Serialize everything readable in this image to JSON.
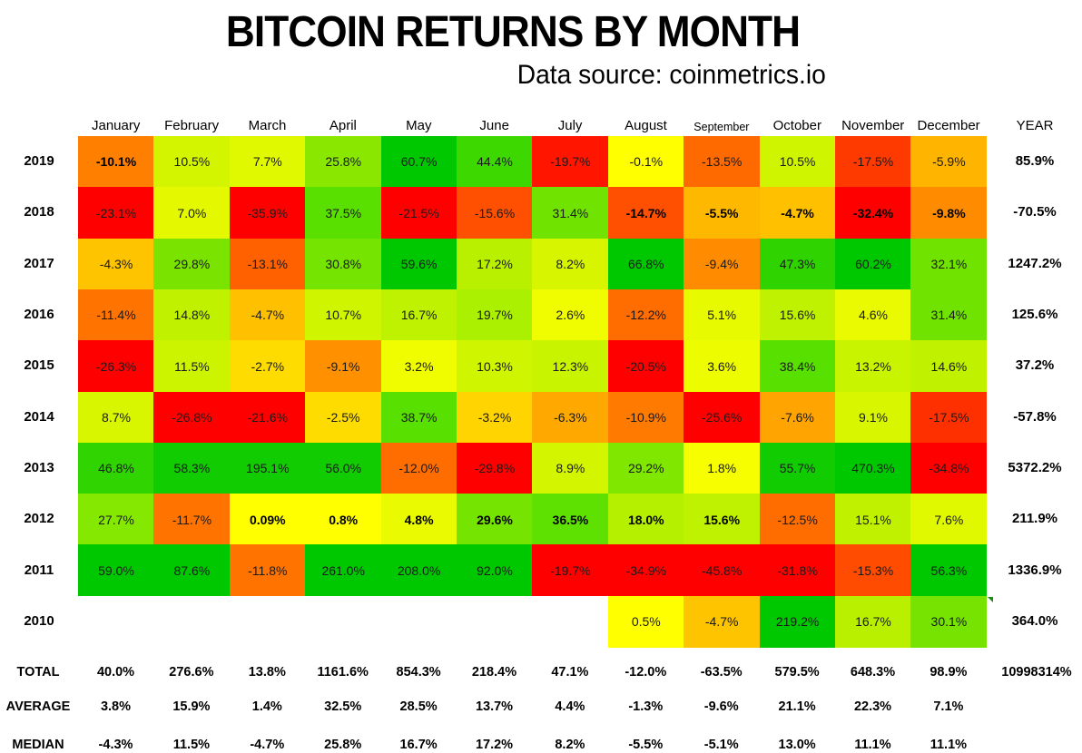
{
  "title": "BITCOIN RETURNS BY MONTH",
  "subtitle": "Data source: coinmetrics.io",
  "year_header": "YEAR",
  "months": [
    "January",
    "February",
    "March",
    "April",
    "May",
    "June",
    "July",
    "August",
    "September",
    "October",
    "November",
    "December"
  ],
  "rows": [
    {
      "year": "2019",
      "values": [
        "-10.1%",
        "10.5%",
        "7.7%",
        "25.8%",
        "60.7%",
        "44.4%",
        "-19.7%",
        "-0.1%",
        "-13.5%",
        "10.5%",
        "-17.5%",
        "-5.9%"
      ],
      "colors": [
        "#ff7f00",
        "#d4f500",
        "#e0f800",
        "#8ae800",
        "#00c800",
        "#3dd800",
        "#ff1500",
        "#ffff00",
        "#ff6a00",
        "#d0f500",
        "#ff3a00",
        "#ffb400"
      ],
      "bold": [
        true,
        false,
        false,
        false,
        false,
        false,
        false,
        false,
        false,
        false,
        false,
        false
      ],
      "year_total": "85.9%"
    },
    {
      "year": "2018",
      "values": [
        "-23.1%",
        "7.0%",
        "-35.9%",
        "37.5%",
        "-21.5%",
        "-15.6%",
        "31.4%",
        "-14.7%",
        "-5.5%",
        "-4.7%",
        "-32.4%",
        "-9.8%"
      ],
      "colors": [
        "#ff0000",
        "#e4f800",
        "#ff0000",
        "#5ae000",
        "#ff0000",
        "#ff4f00",
        "#70e400",
        "#ff4f00",
        "#ffb800",
        "#ffc000",
        "#ff0000",
        "#ff8c00"
      ],
      "bold": [
        false,
        false,
        false,
        false,
        false,
        false,
        false,
        true,
        true,
        true,
        true,
        true
      ],
      "year_total": "-70.5%"
    },
    {
      "year": "2017",
      "values": [
        "-4.3%",
        "29.8%",
        "-13.1%",
        "30.8%",
        "59.6%",
        "17.2%",
        "8.2%",
        "66.8%",
        "-9.4%",
        "47.3%",
        "60.2%",
        "32.1%"
      ],
      "colors": [
        "#ffc400",
        "#7ae400",
        "#ff6000",
        "#74e400",
        "#00c800",
        "#b8f000",
        "#d8f500",
        "#00c800",
        "#ff8c00",
        "#2fd400",
        "#00c800",
        "#70e400"
      ],
      "bold": [
        false,
        false,
        false,
        false,
        false,
        false,
        false,
        false,
        false,
        false,
        false,
        false
      ],
      "year_total": "1247.2%"
    },
    {
      "year": "2016",
      "values": [
        "-11.4%",
        "14.8%",
        "-4.7%",
        "10.7%",
        "16.7%",
        "19.7%",
        "2.6%",
        "-12.2%",
        "5.1%",
        "15.6%",
        "4.6%",
        "31.4%"
      ],
      "colors": [
        "#ff7300",
        "#c0f200",
        "#ffc000",
        "#d0f500",
        "#bef200",
        "#aaf000",
        "#f0fc00",
        "#ff6c00",
        "#e8fa00",
        "#bef200",
        "#eafa00",
        "#70e400"
      ],
      "bold": [
        false,
        false,
        false,
        false,
        false,
        false,
        false,
        false,
        false,
        false,
        false,
        false
      ],
      "year_total": "125.6%"
    },
    {
      "year": "2015",
      "values": [
        "-26.3%",
        "11.5%",
        "-2.7%",
        "-9.1%",
        "3.2%",
        "10.3%",
        "12.3%",
        "-20.5%",
        "3.6%",
        "38.4%",
        "13.2%",
        "14.6%"
      ],
      "colors": [
        "#ff0000",
        "#ccf400",
        "#ffdc00",
        "#ff9000",
        "#f0fc00",
        "#d0f500",
        "#c8f400",
        "#ff0000",
        "#eefc00",
        "#58e000",
        "#c8f400",
        "#c0f200"
      ],
      "bold": [
        false,
        false,
        false,
        false,
        false,
        false,
        false,
        false,
        false,
        false,
        false,
        false
      ],
      "year_total": "37.2%"
    },
    {
      "year": "2014",
      "values": [
        "8.7%",
        "-26.8%",
        "-21.6%",
        "-2.5%",
        "38.7%",
        "-3.2%",
        "-6.3%",
        "-10.9%",
        "-25.6%",
        "-7.6%",
        "9.1%",
        "-17.5%"
      ],
      "colors": [
        "#d8f600",
        "#ff0000",
        "#ff0000",
        "#ffdc00",
        "#58e000",
        "#ffd400",
        "#ffa800",
        "#ff7a00",
        "#ff0000",
        "#ffa400",
        "#d8f600",
        "#ff3000"
      ],
      "bold": [
        false,
        false,
        false,
        false,
        false,
        false,
        false,
        false,
        false,
        false,
        false,
        false
      ],
      "year_total": "-57.8%"
    },
    {
      "year": "2013",
      "values": [
        "46.8%",
        "58.3%",
        "195.1%",
        "56.0%",
        "-12.0%",
        "-29.8%",
        "8.9%",
        "29.2%",
        "1.8%",
        "55.7%",
        "470.3%",
        "-34.8%"
      ],
      "colors": [
        "#30d400",
        "#10cc00",
        "#10cc00",
        "#10cc00",
        "#ff6c00",
        "#ff0000",
        "#d4f500",
        "#80e800",
        "#f6fe00",
        "#10cc00",
        "#00c800",
        "#ff0000"
      ],
      "bold": [
        false,
        false,
        false,
        false,
        false,
        false,
        false,
        false,
        false,
        false,
        false,
        false
      ],
      "year_total": "5372.2%"
    },
    {
      "year": "2012",
      "values": [
        "27.7%",
        "-11.7%",
        "0.09%",
        "0.8%",
        "4.8%",
        "29.6%",
        "36.5%",
        "18.0%",
        "15.6%",
        "-12.5%",
        "15.1%",
        "7.6%"
      ],
      "colors": [
        "#84e800",
        "#ff7300",
        "#ffff00",
        "#ffff00",
        "#eafa00",
        "#74e400",
        "#5ee000",
        "#b4f000",
        "#bef200",
        "#ff6c00",
        "#c0f200",
        "#e0f800"
      ],
      "bold": [
        false,
        false,
        true,
        true,
        true,
        true,
        true,
        true,
        true,
        false,
        false,
        false
      ],
      "year_total": "211.9%"
    },
    {
      "year": "2011",
      "values": [
        "59.0%",
        "87.6%",
        "-11.8%",
        "261.0%",
        "208.0%",
        "92.0%",
        "-19.7%",
        "-34.9%",
        "-45.8%",
        "-31.8%",
        "-15.3%",
        "56.3%"
      ],
      "colors": [
        "#00c800",
        "#00c800",
        "#ff7300",
        "#00c800",
        "#00c800",
        "#00c800",
        "#ff0000",
        "#ff0000",
        "#ff0000",
        "#ff0000",
        "#ff4c00",
        "#00c800"
      ],
      "bold": [
        false,
        false,
        false,
        false,
        false,
        false,
        false,
        false,
        false,
        false,
        false,
        false
      ],
      "year_total": "1336.9%"
    },
    {
      "year": "2010",
      "values": [
        null,
        null,
        null,
        null,
        null,
        null,
        null,
        "0.5%",
        "-4.7%",
        "219.2%",
        "16.7%",
        "30.1%"
      ],
      "colors": [
        null,
        null,
        null,
        null,
        null,
        null,
        null,
        "#ffff00",
        "#ffc400",
        "#00c800",
        "#b8f000",
        "#76e400"
      ],
      "bold": [
        false,
        false,
        false,
        false,
        false,
        false,
        false,
        false,
        false,
        false,
        false,
        false
      ],
      "year_total": "364.0%"
    }
  ],
  "stats": [
    {
      "label": "TOTAL",
      "values": [
        "40.0%",
        "276.6%",
        "13.8%",
        "1161.6%",
        "854.3%",
        "218.4%",
        "47.1%",
        "-12.0%",
        "-63.5%",
        "579.5%",
        "648.3%",
        "98.9%"
      ],
      "year": "10998314%"
    },
    {
      "label": "AVERAGE",
      "values": [
        "3.8%",
        "15.9%",
        "1.4%",
        "32.5%",
        "28.5%",
        "13.7%",
        "4.4%",
        "-1.3%",
        "-9.6%",
        "21.1%",
        "22.3%",
        "7.1%"
      ],
      "year": ""
    },
    {
      "label": "MEDIAN",
      "values": [
        "-4.3%",
        "11.5%",
        "-4.7%",
        "25.8%",
        "16.7%",
        "17.2%",
        "8.2%",
        "-5.5%",
        "-5.1%",
        "13.0%",
        "11.1%",
        "11.1%"
      ],
      "year": ""
    }
  ],
  "chart_data": {
    "type": "heatmap",
    "title": "BITCOIN RETURNS BY MONTH",
    "subtitle": "Data source: coinmetrics.io",
    "x": [
      "January",
      "February",
      "March",
      "April",
      "May",
      "June",
      "July",
      "August",
      "September",
      "October",
      "November",
      "December",
      "YEAR"
    ],
    "y": [
      "2019",
      "2018",
      "2017",
      "2016",
      "2015",
      "2014",
      "2013",
      "2012",
      "2011",
      "2010"
    ],
    "unit": "%",
    "color_scale": {
      "negative": "#ff0000",
      "zero": "#ffff00",
      "positive": "#00c800"
    },
    "values": [
      [
        -10.1,
        10.5,
        7.7,
        25.8,
        60.7,
        44.4,
        -19.7,
        -0.1,
        -13.5,
        10.5,
        -17.5,
        -5.9,
        85.9
      ],
      [
        -23.1,
        7.0,
        -35.9,
        37.5,
        -21.5,
        -15.6,
        31.4,
        -14.7,
        -5.5,
        -4.7,
        -32.4,
        -9.8,
        -70.5
      ],
      [
        -4.3,
        29.8,
        -13.1,
        30.8,
        59.6,
        17.2,
        8.2,
        66.8,
        -9.4,
        47.3,
        60.2,
        32.1,
        1247.2
      ],
      [
        -11.4,
        14.8,
        -4.7,
        10.7,
        16.7,
        19.7,
        2.6,
        -12.2,
        5.1,
        15.6,
        4.6,
        31.4,
        125.6
      ],
      [
        -26.3,
        11.5,
        -2.7,
        -9.1,
        3.2,
        10.3,
        12.3,
        -20.5,
        3.6,
        38.4,
        13.2,
        14.6,
        37.2
      ],
      [
        8.7,
        -26.8,
        -21.6,
        -2.5,
        38.7,
        -3.2,
        -6.3,
        -10.9,
        -25.6,
        -7.6,
        9.1,
        -17.5,
        -57.8
      ],
      [
        46.8,
        58.3,
        195.1,
        56.0,
        -12.0,
        -29.8,
        8.9,
        29.2,
        1.8,
        55.7,
        470.3,
        -34.8,
        5372.2
      ],
      [
        27.7,
        -11.7,
        0.09,
        0.8,
        4.8,
        29.6,
        36.5,
        18.0,
        15.6,
        -12.5,
        15.1,
        7.6,
        211.9
      ],
      [
        59.0,
        87.6,
        -11.8,
        261.0,
        208.0,
        92.0,
        -19.7,
        -34.9,
        -45.8,
        -31.8,
        -15.3,
        56.3,
        1336.9
      ],
      [
        null,
        null,
        null,
        null,
        null,
        null,
        null,
        0.5,
        -4.7,
        219.2,
        16.7,
        30.1,
        364.0
      ]
    ],
    "summary_rows": {
      "TOTAL": [
        40.0,
        276.6,
        13.8,
        1161.6,
        854.3,
        218.4,
        47.1,
        -12.0,
        -63.5,
        579.5,
        648.3,
        98.9,
        10998314
      ],
      "AVERAGE": [
        3.8,
        15.9,
        1.4,
        32.5,
        28.5,
        13.7,
        4.4,
        -1.3,
        -9.6,
        21.1,
        22.3,
        7.1,
        null
      ],
      "MEDIAN": [
        -4.3,
        11.5,
        -4.7,
        25.8,
        16.7,
        17.2,
        8.2,
        -5.5,
        -5.1,
        13.0,
        11.1,
        11.1,
        null
      ]
    }
  }
}
